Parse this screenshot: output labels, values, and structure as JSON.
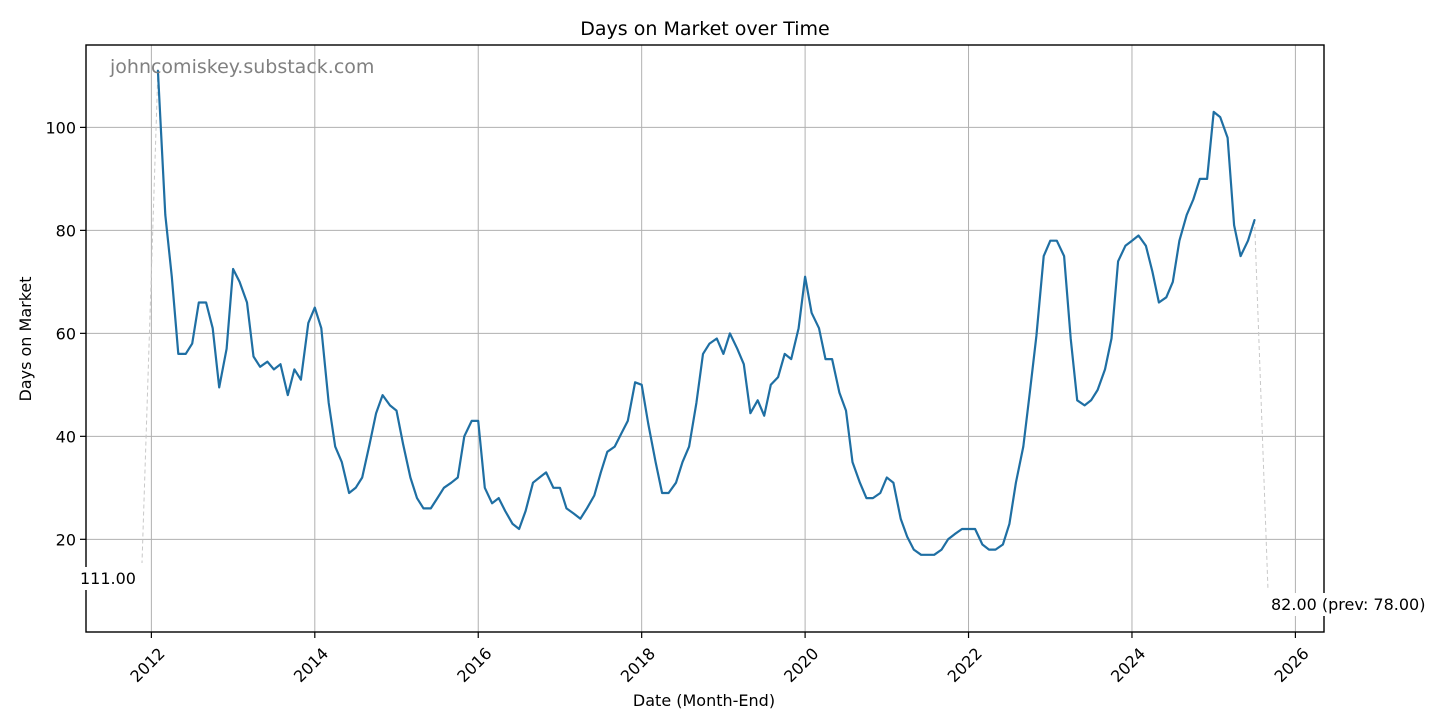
{
  "chart_data": {
    "type": "line",
    "title": "Days on Market over Time",
    "xlabel": "Date (Month-End)",
    "ylabel": "Days on Market",
    "watermark": "johncomiskey.substack.com",
    "xlim": [
      2011.2,
      2026.35
    ],
    "ylim": [
      2,
      116
    ],
    "x_ticks": [
      2012,
      2014,
      2016,
      2018,
      2020,
      2022,
      2024,
      2026
    ],
    "x_tick_labels": [
      "2012",
      "2014",
      "2016",
      "2018",
      "2020",
      "2022",
      "2024",
      "2026"
    ],
    "y_ticks": [
      20,
      40,
      60,
      80,
      100
    ],
    "y_tick_labels": [
      "20",
      "40",
      "60",
      "80",
      "100"
    ],
    "grid": true,
    "series_color": "#1f6fa3",
    "series": [
      {
        "x": [
          2012.08,
          2012.17,
          2012.25,
          2012.33,
          2012.42,
          2012.5,
          2012.58,
          2012.67,
          2012.75,
          2012.83,
          2012.92,
          2013.0,
          2013.08,
          2013.17,
          2013.25,
          2013.33,
          2013.42,
          2013.5,
          2013.58,
          2013.67,
          2013.75,
          2013.83,
          2013.92,
          2014.0,
          2014.08,
          2014.17,
          2014.25,
          2014.33,
          2014.42,
          2014.5,
          2014.58,
          2014.67,
          2014.75,
          2014.83,
          2014.92,
          2015.0,
          2015.08,
          2015.17,
          2015.25,
          2015.33,
          2015.42,
          2015.5,
          2015.58,
          2015.67,
          2015.75,
          2015.83,
          2015.92,
          2016.0,
          2016.08,
          2016.17,
          2016.25,
          2016.33,
          2016.42,
          2016.5,
          2016.58,
          2016.67,
          2016.75,
          2016.83,
          2016.92,
          2017.0,
          2017.08,
          2017.17,
          2017.25,
          2017.33,
          2017.42,
          2017.5,
          2017.58,
          2017.67,
          2017.75,
          2017.83,
          2017.92,
          2018.0,
          2018.08,
          2018.17,
          2018.25,
          2018.33,
          2018.42,
          2018.5,
          2018.58,
          2018.67,
          2018.75,
          2018.83,
          2018.92,
          2019.0,
          2019.08,
          2019.17,
          2019.25,
          2019.33,
          2019.42,
          2019.5,
          2019.58,
          2019.67,
          2019.75,
          2019.83,
          2019.92,
          2020.0,
          2020.08,
          2020.17,
          2020.25,
          2020.33,
          2020.42,
          2020.5,
          2020.58,
          2020.67,
          2020.75,
          2020.83,
          2020.92,
          2021.0,
          2021.08,
          2021.17,
          2021.25,
          2021.33,
          2021.42,
          2021.5,
          2021.58,
          2021.67,
          2021.75,
          2021.83,
          2021.92,
          2022.0,
          2022.08,
          2022.17,
          2022.25,
          2022.33,
          2022.42,
          2022.5,
          2022.58,
          2022.67,
          2022.75,
          2022.83,
          2022.92,
          2023.0,
          2023.08,
          2023.17,
          2023.25,
          2023.33,
          2023.42,
          2023.5,
          2023.58,
          2023.67,
          2023.75,
          2023.83,
          2023.92,
          2024.0,
          2024.08,
          2024.17,
          2024.25,
          2024.33,
          2024.42,
          2024.5,
          2024.58,
          2024.67,
          2024.75,
          2024.83,
          2024.92,
          2025.0,
          2025.08,
          2025.17,
          2025.25,
          2025.33,
          2025.42,
          2025.5
        ],
        "y": [
          111,
          83,
          71,
          56,
          56,
          58,
          66,
          66,
          61,
          49.5,
          57,
          72.5,
          70,
          66,
          55.5,
          53.5,
          54.5,
          53,
          54,
          48,
          53,
          51,
          62,
          65,
          61,
          46.5,
          38,
          35,
          29,
          30,
          32,
          38.5,
          44.5,
          48,
          46,
          45,
          38.5,
          32,
          28,
          26,
          26,
          28,
          30,
          31,
          32,
          40,
          43,
          43,
          30,
          27,
          28,
          25.5,
          23,
          22,
          25.5,
          31,
          32,
          33,
          30,
          30,
          26,
          25,
          24,
          26,
          28.5,
          33,
          37,
          38,
          40.5,
          43,
          50.5,
          50,
          42.5,
          35,
          29,
          29,
          31,
          35,
          38,
          46.5,
          56,
          58,
          59,
          56,
          60,
          57,
          54,
          44.5,
          47,
          44,
          50,
          51.5,
          56,
          55,
          61,
          71,
          64,
          61,
          55,
          55,
          48.5,
          45,
          35,
          31,
          28,
          28,
          29,
          32,
          31,
          24,
          20.5,
          18,
          17,
          17,
          17,
          18,
          20,
          21,
          22,
          22,
          22,
          19,
          18,
          18,
          19,
          23,
          31,
          38,
          48.5,
          59.5,
          75,
          78,
          78,
          75,
          59,
          47,
          46,
          47,
          49,
          53,
          59,
          74,
          77,
          78,
          79,
          77,
          72,
          66,
          67,
          70,
          78,
          83,
          86,
          90,
          90,
          103,
          102,
          98,
          81,
          75,
          78,
          82
        ]
      }
    ],
    "annotations": [
      {
        "text": "111.00",
        "x": 2012.08,
        "y": 111
      },
      {
        "text": "82.00 (prev: 78.00)",
        "x": 2025.5,
        "y": 82
      }
    ]
  }
}
